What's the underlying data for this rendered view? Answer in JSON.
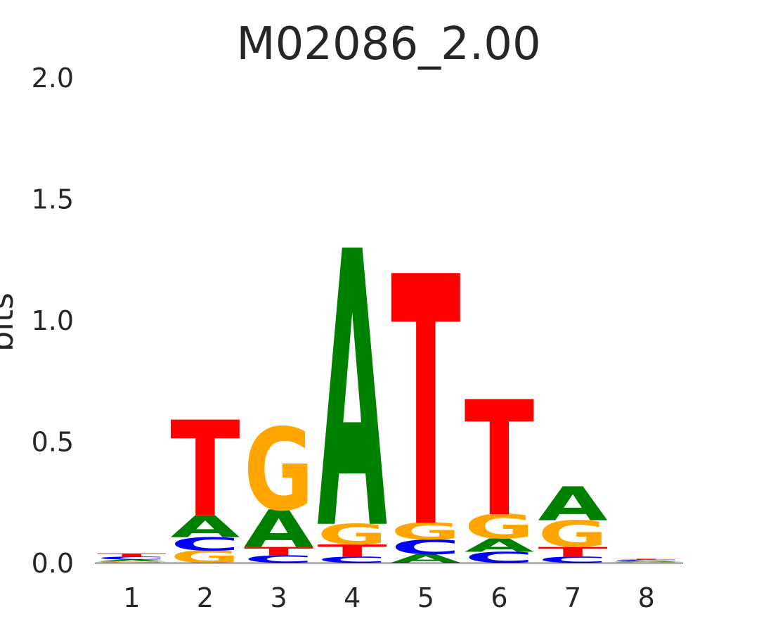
{
  "chart_data": {
    "type": "sequence-logo",
    "title": "M02086_2.00",
    "ylabel": "bits",
    "ylim": [
      0,
      2.0
    ],
    "yticks": [
      "0.0",
      "0.5",
      "1.0",
      "1.5",
      "2.0"
    ],
    "categories": [
      "1",
      "2",
      "3",
      "4",
      "5",
      "6",
      "7",
      "8"
    ],
    "colors": {
      "A": "#008000",
      "C": "#0000ff",
      "G": "#ffa500",
      "T": "#ff0000"
    },
    "positions": [
      {
        "pos": "1",
        "stack": [
          {
            "base": "G",
            "bits": 0.005
          },
          {
            "base": "A",
            "bits": 0.008
          },
          {
            "base": "C",
            "bits": 0.012
          },
          {
            "base": "T",
            "bits": 0.013
          }
        ]
      },
      {
        "pos": "2",
        "stack": [
          {
            "base": "G",
            "bits": 0.05
          },
          {
            "base": "C",
            "bits": 0.055
          },
          {
            "base": "A",
            "bits": 0.09
          },
          {
            "base": "T",
            "bits": 0.395
          }
        ]
      },
      {
        "pos": "3",
        "stack": [
          {
            "base": "C",
            "bits": 0.03
          },
          {
            "base": "T",
            "bits": 0.035
          },
          {
            "base": "A",
            "bits": 0.155
          },
          {
            "base": "G",
            "bits": 0.34
          }
        ]
      },
      {
        "pos": "4",
        "stack": [
          {
            "base": "C",
            "bits": 0.025
          },
          {
            "base": "T",
            "bits": 0.05
          },
          {
            "base": "G",
            "bits": 0.085
          },
          {
            "base": "A",
            "bits": 1.14
          }
        ]
      },
      {
        "pos": "5",
        "stack": [
          {
            "base": "A",
            "bits": 0.035
          },
          {
            "base": "C",
            "bits": 0.06
          },
          {
            "base": "G",
            "bits": 0.07
          },
          {
            "base": "T",
            "bits": 1.03
          }
        ]
      },
      {
        "pos": "6",
        "stack": [
          {
            "base": "C",
            "bits": 0.045
          },
          {
            "base": "A",
            "bits": 0.055
          },
          {
            "base": "G",
            "bits": 0.1
          },
          {
            "base": "T",
            "bits": 0.475
          }
        ]
      },
      {
        "pos": "7",
        "stack": [
          {
            "base": "C",
            "bits": 0.025
          },
          {
            "base": "T",
            "bits": 0.04
          },
          {
            "base": "G",
            "bits": 0.11
          },
          {
            "base": "A",
            "bits": 0.14
          }
        ]
      },
      {
        "pos": "8",
        "stack": [
          {
            "base": "G",
            "bits": 0.004
          },
          {
            "base": "A",
            "bits": 0.004
          },
          {
            "base": "C",
            "bits": 0.005
          },
          {
            "base": "T",
            "bits": 0.003
          }
        ]
      }
    ]
  }
}
